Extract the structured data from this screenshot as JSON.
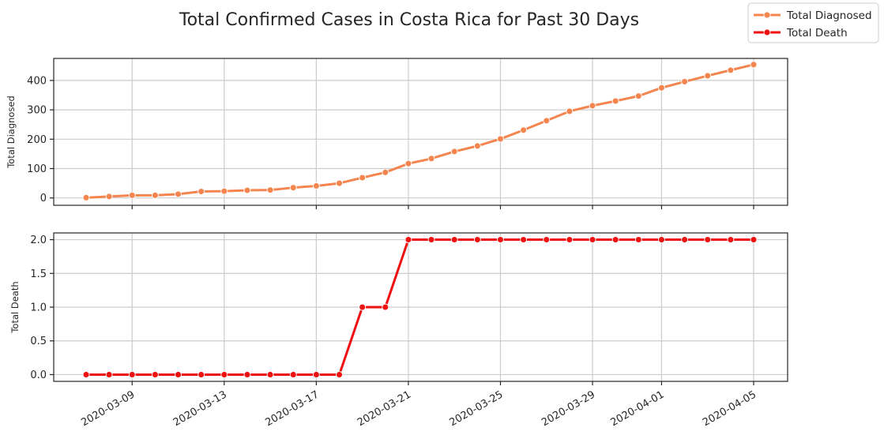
{
  "chart_data": {
    "type": "line",
    "title": "Total Confirmed Cases in Costa Rica for Past 30 Days",
    "x": [
      "2020-03-07",
      "2020-03-08",
      "2020-03-09",
      "2020-03-10",
      "2020-03-11",
      "2020-03-12",
      "2020-03-13",
      "2020-03-14",
      "2020-03-15",
      "2020-03-16",
      "2020-03-17",
      "2020-03-18",
      "2020-03-19",
      "2020-03-20",
      "2020-03-21",
      "2020-03-22",
      "2020-03-23",
      "2020-03-24",
      "2020-03-25",
      "2020-03-26",
      "2020-03-27",
      "2020-03-28",
      "2020-03-29",
      "2020-03-30",
      "2020-03-31",
      "2020-04-01",
      "2020-04-02",
      "2020-04-03",
      "2020-04-04",
      "2020-04-05"
    ],
    "xticks": [
      "2020-03-09",
      "2020-03-13",
      "2020-03-17",
      "2020-03-21",
      "2020-03-25",
      "2020-03-29",
      "2020-04-01",
      "2020-04-05"
    ],
    "panels": [
      {
        "name": "Total Diagnosed",
        "ylabel": "Total Diagnosed",
        "color": "#f5854f",
        "ylim": [
          -25,
          475
        ],
        "yticks": [
          0,
          100,
          200,
          300,
          400
        ],
        "ytick_labels": [
          "0",
          "100",
          "200",
          "300",
          "400"
        ],
        "values": [
          1,
          5,
          9,
          9,
          13,
          22,
          23,
          26,
          27,
          35,
          41,
          50,
          69,
          87,
          117,
          134,
          158,
          177,
          201,
          231,
          263,
          295,
          314,
          330,
          347,
          375,
          396,
          416,
          435,
          454
        ]
      },
      {
        "name": "Total Death",
        "ylabel": "Total Death",
        "color": "#ee1111",
        "ylim": [
          -0.1,
          2.1
        ],
        "yticks": [
          0,
          0.5,
          1.0,
          1.5,
          2.0
        ],
        "ytick_labels": [
          "0.0",
          "0.5",
          "1.0",
          "1.5",
          "2.0"
        ],
        "values": [
          0,
          0,
          0,
          0,
          0,
          0,
          0,
          0,
          0,
          0,
          0,
          0,
          1,
          1,
          2,
          2,
          2,
          2,
          2,
          2,
          2,
          2,
          2,
          2,
          2,
          2,
          2,
          2,
          2,
          2
        ]
      }
    ],
    "legend": {
      "placement": "top-right",
      "entries": [
        {
          "label": "Total Diagnosed",
          "color": "#f5854f"
        },
        {
          "label": "Total Death",
          "color": "#ee1111"
        }
      ]
    },
    "grid": true
  }
}
